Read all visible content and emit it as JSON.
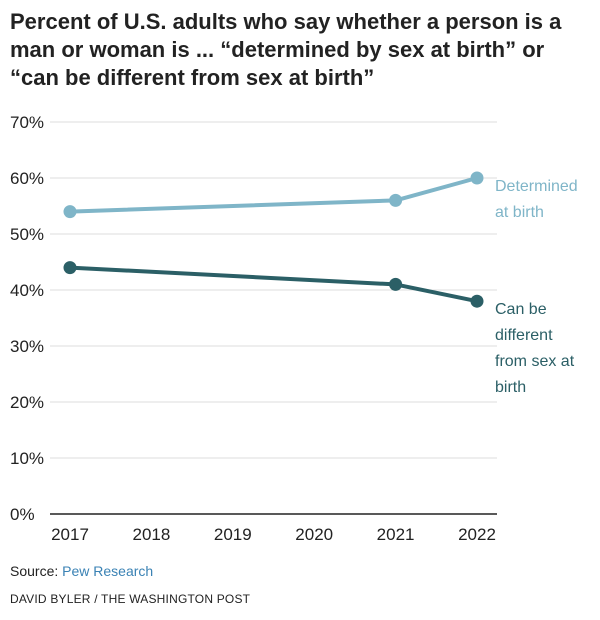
{
  "title": "Percent of U.S. adults who say whether a person is a man or woman is ... “determined by sex at birth” or “can be different from sex at birth”",
  "source": {
    "prefix": "Source: ",
    "link_text": "Pew Research"
  },
  "credit": "DAVID BYLER / THE WASHINGTON POST",
  "chart_data": {
    "type": "line",
    "title": "Percent of U.S. adults who say whether a person is a man or woman is ... “determined by sex at birth” or “can be different from sex at birth”",
    "xlabel": "",
    "ylabel": "",
    "categories": [
      "2017",
      "2018",
      "2019",
      "2020",
      "2021",
      "2022"
    ],
    "ylim": [
      0,
      70
    ],
    "yticks": [
      0,
      10,
      20,
      30,
      40,
      50,
      60,
      70
    ],
    "ytick_labels": [
      "0%",
      "10%",
      "20%",
      "30%",
      "40%",
      "50%",
      "60%",
      "70%"
    ],
    "grid": true,
    "series": [
      {
        "name": "Determined at birth",
        "label_lines": [
          "Determined",
          "at birth"
        ],
        "color": "#7fb5c8",
        "points": [
          {
            "x": "2017",
            "y": 54
          },
          {
            "x": "2021",
            "y": 56
          },
          {
            "x": "2022",
            "y": 60
          }
        ]
      },
      {
        "name": "Can be different from sex at birth",
        "label_lines": [
          "Can be",
          "different",
          "from sex at",
          "birth"
        ],
        "color": "#2b5f66",
        "points": [
          {
            "x": "2017",
            "y": 44
          },
          {
            "x": "2021",
            "y": 41
          },
          {
            "x": "2022",
            "y": 38
          }
        ]
      }
    ]
  }
}
